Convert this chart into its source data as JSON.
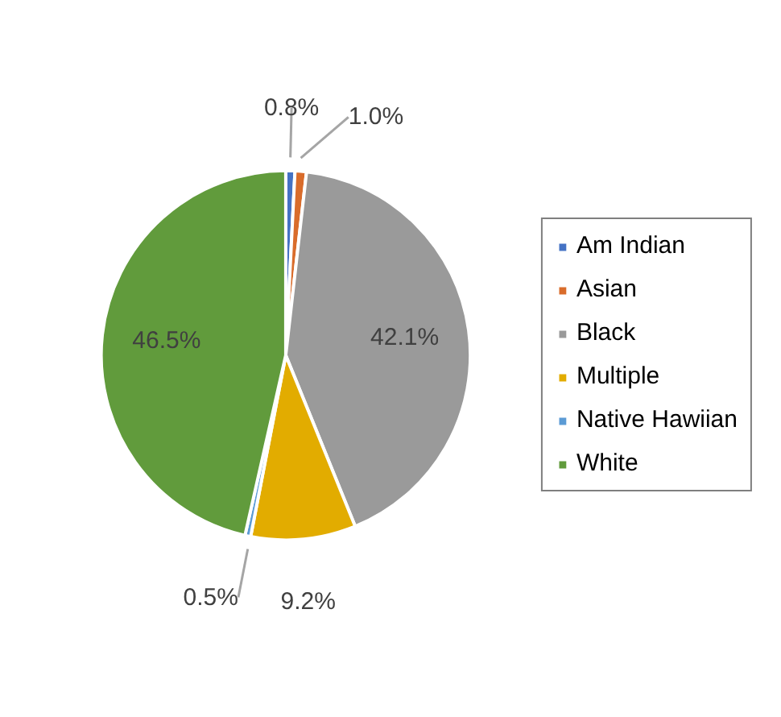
{
  "chart_data": {
    "type": "pie",
    "categories": [
      "Am Indian",
      "Asian",
      "Black",
      "Multiple",
      "Native Hawiian",
      "White"
    ],
    "values": [
      0.8,
      1.0,
      42.1,
      9.2,
      0.5,
      46.5
    ],
    "colors": [
      "#4472c4",
      "#d96c2b",
      "#9a9a9a",
      "#e2ac00",
      "#5b9bd5",
      "#619b3c"
    ],
    "value_labels": [
      "0.8%",
      "1.0%",
      "42.1%",
      "9.2%",
      "0.5%",
      "46.5%"
    ],
    "legend": "right"
  }
}
